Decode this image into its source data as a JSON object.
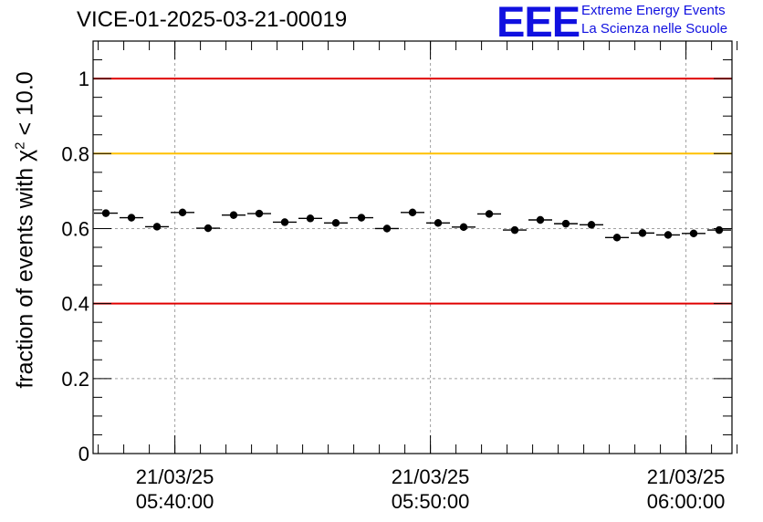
{
  "chart_data": {
    "type": "scatter",
    "title": "VICE-01-2025-03-21-00019",
    "ylabel_prefix": "fraction of events with ",
    "ylabel_symbol": "χ",
    "ylabel_sup": "2",
    "ylabel_suffix": " < 10.0",
    "ylim": [
      0,
      1.1
    ],
    "yticks": [
      0,
      0.2,
      0.4,
      0.6,
      0.8,
      1
    ],
    "yticklabels": [
      "0",
      "0.2",
      "0.4",
      "0.6",
      "0.8",
      "1"
    ],
    "xlim_minutes": [
      0,
      25
    ],
    "xticks": [
      {
        "min": 3.2,
        "date": "21/03/25",
        "time": "05:40:00"
      },
      {
        "min": 13.2,
        "date": "21/03/25",
        "time": "05:50:00"
      },
      {
        "min": 23.2,
        "date": "21/03/25",
        "time": "06:00:00"
      }
    ],
    "reference_lines": [
      {
        "y": 1.0,
        "color": "#e00000"
      },
      {
        "y": 0.8,
        "color": "#ffc000"
      },
      {
        "y": 0.4,
        "color": "#e00000"
      }
    ],
    "bin_width_minutes": 1.0,
    "points": [
      {
        "x": 0.5,
        "y": 0.641,
        "err": 0.01
      },
      {
        "x": 1.5,
        "y": 0.629,
        "err": 0.01
      },
      {
        "x": 2.5,
        "y": 0.605,
        "err": 0.01
      },
      {
        "x": 3.5,
        "y": 0.643,
        "err": 0.01
      },
      {
        "x": 4.5,
        "y": 0.601,
        "err": 0.01
      },
      {
        "x": 5.5,
        "y": 0.636,
        "err": 0.01
      },
      {
        "x": 6.5,
        "y": 0.64,
        "err": 0.01
      },
      {
        "x": 7.5,
        "y": 0.617,
        "err": 0.01
      },
      {
        "x": 8.5,
        "y": 0.627,
        "err": 0.01
      },
      {
        "x": 9.5,
        "y": 0.615,
        "err": 0.01
      },
      {
        "x": 10.5,
        "y": 0.629,
        "err": 0.01
      },
      {
        "x": 11.5,
        "y": 0.6,
        "err": 0.01
      },
      {
        "x": 12.5,
        "y": 0.643,
        "err": 0.01
      },
      {
        "x": 13.5,
        "y": 0.615,
        "err": 0.01
      },
      {
        "x": 14.5,
        "y": 0.604,
        "err": 0.01
      },
      {
        "x": 15.5,
        "y": 0.639,
        "err": 0.01
      },
      {
        "x": 16.5,
        "y": 0.596,
        "err": 0.01
      },
      {
        "x": 17.5,
        "y": 0.623,
        "err": 0.01
      },
      {
        "x": 18.5,
        "y": 0.613,
        "err": 0.01
      },
      {
        "x": 19.5,
        "y": 0.61,
        "err": 0.01
      },
      {
        "x": 20.5,
        "y": 0.576,
        "err": 0.01
      },
      {
        "x": 21.5,
        "y": 0.588,
        "err": 0.01
      },
      {
        "x": 22.5,
        "y": 0.583,
        "err": 0.01
      },
      {
        "x": 23.5,
        "y": 0.587,
        "err": 0.01
      },
      {
        "x": 24.5,
        "y": 0.596,
        "err": 0.01
      }
    ]
  },
  "logo": {
    "mark": "EEE",
    "line1": "Extreme Energy Events",
    "line2": "La Scienza nelle Scuole",
    "color": "#1010e0"
  }
}
